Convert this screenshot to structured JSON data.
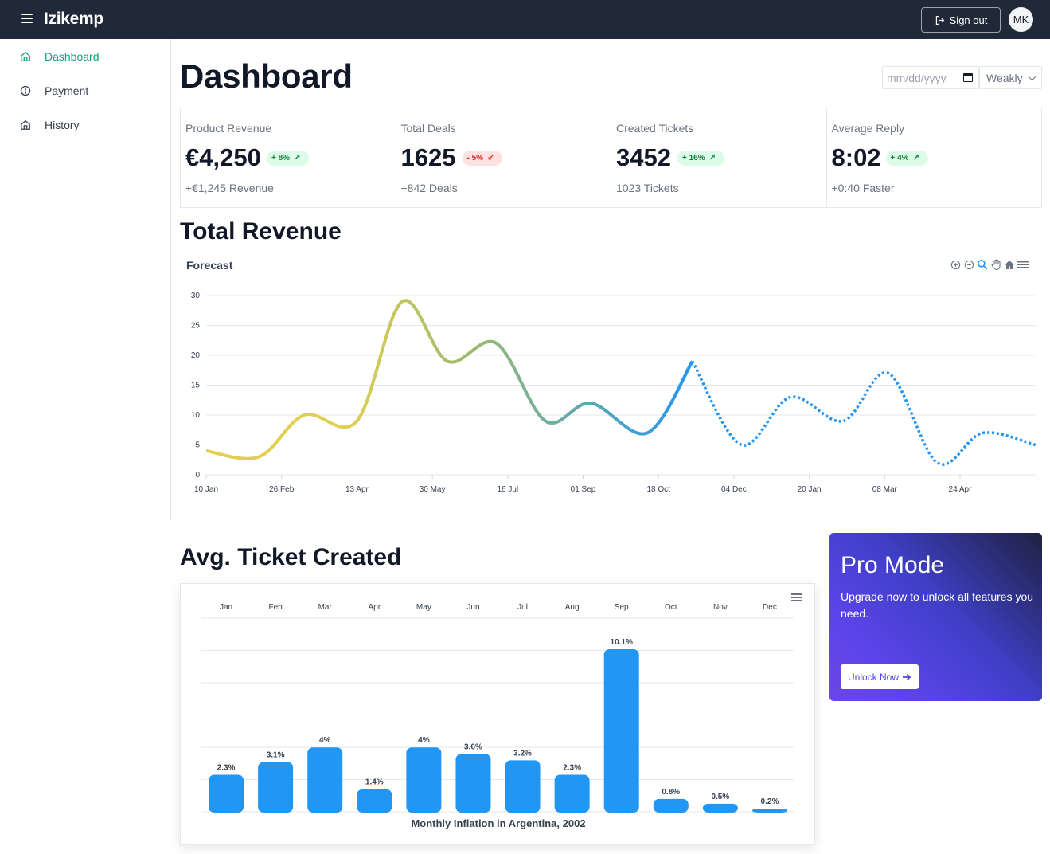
{
  "app": {
    "brand": "Izikemp"
  },
  "topbar": {
    "signout_label": "Sign out",
    "avatar_initials": "MK"
  },
  "sidebar": {
    "items": [
      {
        "label": "Dashboard",
        "icon": "home-icon",
        "active": true
      },
      {
        "label": "Payment",
        "icon": "alert-circle-icon",
        "active": false
      },
      {
        "label": "History",
        "icon": "home-icon",
        "active": false
      }
    ]
  },
  "header": {
    "title": "Dashboard",
    "date_placeholder": "mm/dd/yyyy",
    "period_selected": "Weakly"
  },
  "stats": [
    {
      "label": "Product Revenue",
      "value": "€4,250",
      "badge": "+ 8%",
      "trend": "up",
      "sub": "+€1,245 Revenue"
    },
    {
      "label": "Total Deals",
      "value": "1625",
      "badge": "- 5%",
      "trend": "down",
      "sub": "+842 Deals"
    },
    {
      "label": "Created Tickets",
      "value": "3452",
      "badge": "+ 16%",
      "trend": "up",
      "sub": "1023 Tickets"
    },
    {
      "label": "Average Reply",
      "value": "8:02",
      "badge": "+ 4%",
      "trend": "up",
      "sub": "+0:40 Faster"
    }
  ],
  "revenue_section": {
    "title": "Total Revenue",
    "chart_title": "Forecast",
    "toolbar_icons": [
      "zoom-in-icon",
      "zoom-out-icon",
      "magnifier-icon",
      "pan-hand-icon",
      "home-reset-icon",
      "menu-icon"
    ]
  },
  "ticket_section": {
    "title": "Avg. Ticket Created"
  },
  "promo": {
    "title": "Pro Mode",
    "text": "Upgrade now to unlock all features you need.",
    "button_label": "Unlock Now"
  },
  "colors": {
    "accent": "#10a37f",
    "navbar": "#1f2937",
    "bar": "#2196f3",
    "line_start": "#e3cf4f",
    "line_mid": "#9cba6f",
    "line_end": "#2196f3"
  },
  "chart_data": [
    {
      "type": "line",
      "title": "Forecast",
      "x_tick_labels": [
        "10 Jan",
        "26 Feb",
        "13 Apr",
        "30 May",
        "16 Jul",
        "01 Sep",
        "18 Oct",
        "04 Dec",
        "20 Jan",
        "08 Mar",
        "24 Apr"
      ],
      "ylim": [
        0,
        30
      ],
      "y_ticks": [
        0,
        5,
        10,
        15,
        20,
        25,
        30
      ],
      "grid": true,
      "series": [
        {
          "style": "solid",
          "points": [
            [
              0,
              4
            ],
            [
              0.7,
              3
            ],
            [
              1.3,
              10
            ],
            [
              2.0,
              9
            ],
            [
              2.6,
              29
            ],
            [
              3.2,
              19
            ],
            [
              3.85,
              22
            ],
            [
              4.5,
              9
            ],
            [
              5.1,
              12
            ],
            [
              5.85,
              7
            ],
            [
              6.45,
              19
            ]
          ]
        },
        {
          "style": "dotted",
          "points": [
            [
              6.45,
              19
            ],
            [
              7.1,
              5
            ],
            [
              7.75,
              13
            ],
            [
              8.45,
              9
            ],
            [
              9.05,
              17
            ],
            [
              9.7,
              2
            ],
            [
              10.3,
              7
            ],
            [
              11.0,
              5
            ]
          ]
        }
      ]
    },
    {
      "type": "bar",
      "title": "Monthly Inflation in Argentina, 2002",
      "categories": [
        "Jan",
        "Feb",
        "Mar",
        "Apr",
        "May",
        "Jun",
        "Jul",
        "Aug",
        "Sep",
        "Oct",
        "Nov",
        "Dec"
      ],
      "values": [
        2.3,
        3.1,
        4.0,
        1.4,
        4.0,
        3.6,
        3.2,
        2.3,
        10.1,
        0.8,
        0.5,
        0.2
      ],
      "data_labels": [
        "2.3%",
        "3.1%",
        "4%",
        "1.4%",
        "4%",
        "3.6%",
        "3.2%",
        "2.3%",
        "10.1%",
        "0.8%",
        "0.5%",
        "0.2%"
      ],
      "grid": true
    }
  ]
}
